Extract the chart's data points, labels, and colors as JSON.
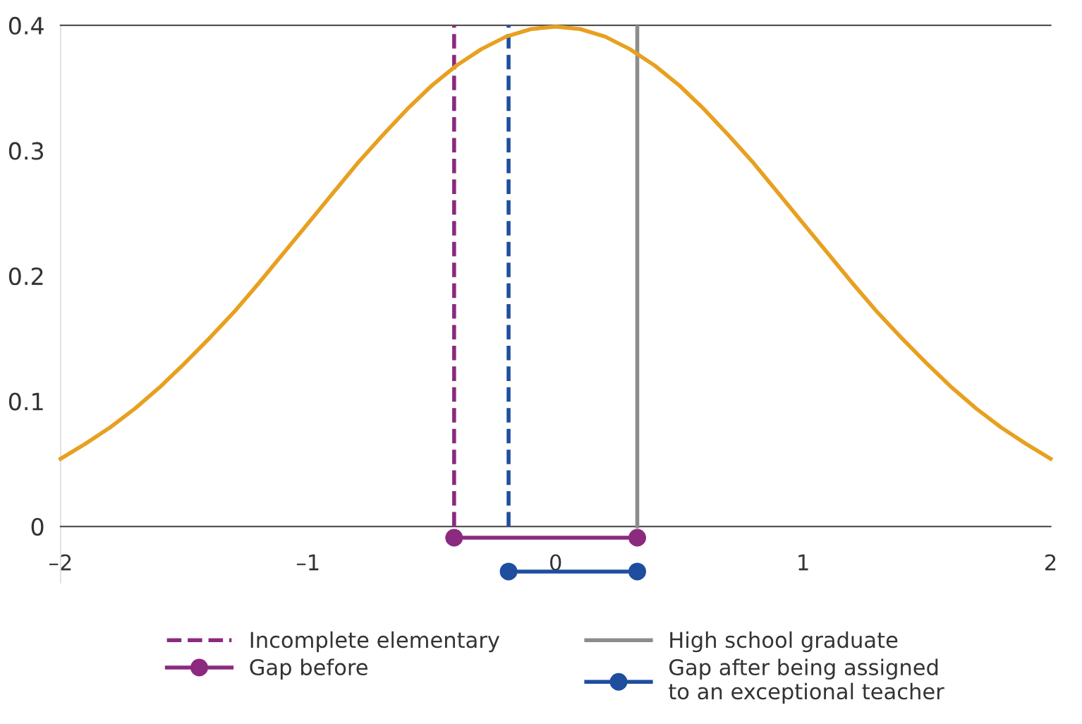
{
  "chart_data": {
    "type": "line",
    "x": [
      -2.0,
      -1.9,
      -1.8,
      -1.7,
      -1.6,
      -1.5,
      -1.4,
      -1.3,
      -1.2,
      -1.1,
      -1.0,
      -0.9,
      -0.8,
      -0.7,
      -0.6,
      -0.5,
      -0.4,
      -0.3,
      -0.2,
      -0.1,
      0.0,
      0.1,
      0.2,
      0.3,
      0.4,
      0.5,
      0.6,
      0.7,
      0.8,
      0.9,
      1.0,
      1.1,
      1.2,
      1.3,
      1.4,
      1.5,
      1.6,
      1.7,
      1.8,
      1.9,
      2.0
    ],
    "series": [
      {
        "color": "#e8a020",
        "values": [
          0.054,
          0.066,
          0.079,
          0.094,
          0.111,
          0.13,
          0.15,
          0.171,
          0.194,
          0.218,
          0.242,
          0.266,
          0.29,
          0.312,
          0.333,
          0.352,
          0.368,
          0.381,
          0.391,
          0.397,
          0.399,
          0.397,
          0.391,
          0.381,
          0.368,
          0.352,
          0.333,
          0.312,
          0.29,
          0.266,
          0.242,
          0.218,
          0.194,
          0.171,
          0.15,
          0.13,
          0.111,
          0.094,
          0.079,
          0.066,
          0.054
        ]
      },
      {
        "name": "Gap before",
        "color": "#8b2a7e",
        "marker": "circle",
        "x": [
          -0.41,
          0.33
        ],
        "values": [
          -0.009,
          -0.009
        ]
      },
      {
        "name": "Gap after being assigned\nto an exceptional teacher",
        "color": "#1f4e9e",
        "marker": "circle",
        "x": [
          -0.19,
          0.33
        ],
        "values": [
          -0.036,
          -0.036
        ]
      }
    ],
    "ref_lines": [
      {
        "axis": "x",
        "value": -0.41,
        "label": "Incomplete elementary",
        "color": "#8b2a7e",
        "line_style": "dashed"
      },
      {
        "axis": "x",
        "value": -0.19,
        "color": "#1f4e9e",
        "line_style": "dashed"
      },
      {
        "axis": "x",
        "value": 0.33,
        "label": "High school graduate",
        "color": "#8c8c8c",
        "line_style": "solid"
      }
    ],
    "xlim": [
      -2,
      2
    ],
    "ylim": [
      -0.045,
      0.4
    ],
    "xticks": [
      {
        "value": -2,
        "label": "–2"
      },
      {
        "value": -1,
        "label": "–1"
      },
      0,
      1,
      2
    ],
    "yticks": [
      0,
      0.1,
      0.2,
      0.3,
      0.4
    ],
    "legend": "bottom",
    "grid": false
  }
}
